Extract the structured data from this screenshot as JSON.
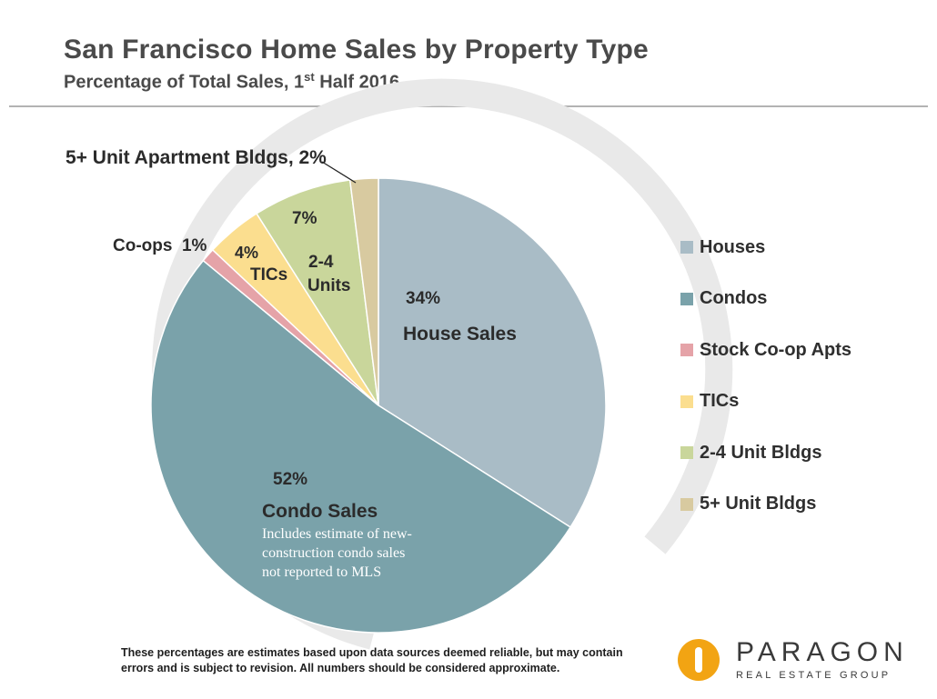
{
  "header": {
    "title": "San Francisco Home Sales by Property Type",
    "subtitle_prefix": "Percentage of Total Sales, 1",
    "subtitle_sup": "st",
    "subtitle_suffix": " Half 2016"
  },
  "chart_data": {
    "type": "pie",
    "title": "San Francisco Home Sales by Property Type",
    "subtitle": "Percentage of Total Sales, 1st Half 2016",
    "legend_position": "right",
    "slices": [
      {
        "name": "Houses",
        "value": 34,
        "color": "#a9bcc6"
      },
      {
        "name": "Condos",
        "value": 52,
        "color": "#7aa2aa"
      },
      {
        "name": "Stock Co-op Apts",
        "value": 1,
        "color": "#e5a3a8"
      },
      {
        "name": "TICs",
        "value": 4,
        "color": "#fbde8f"
      },
      {
        "name": "2-4 Unit Bldgs",
        "value": 7,
        "color": "#c9d69b"
      },
      {
        "name": "5+ Unit Bldgs",
        "value": 2,
        "color": "#d8caa0"
      }
    ],
    "slice_labels": {
      "houses_pct": "34%",
      "houses_text": "House Sales",
      "condos_pct": "52%",
      "condos_text": "Condo Sales",
      "condos_note_1": "Includes estimate of new-",
      "condos_note_2": "construction condo sales",
      "condos_note_3": "not reported to MLS",
      "coops": "Co-ops  1%",
      "tics_pct": "4%",
      "tics_text": "TICs",
      "units24_pct": "7%",
      "units24_text_1": "2-4",
      "units24_text_2": "Units",
      "units5": "5+ Unit Apartment Bldgs, 2%"
    }
  },
  "footnote": {
    "line1": "These percentages are estimates based upon data sources deemed reliable, but may contain",
    "line2": "errors and is subject to revision. All numbers should be considered approximate."
  },
  "logo": {
    "name": "PARAGON",
    "tagline": "REAL ESTATE GROUP",
    "icon": "paragon-logo-icon",
    "color": "#f2a413"
  }
}
